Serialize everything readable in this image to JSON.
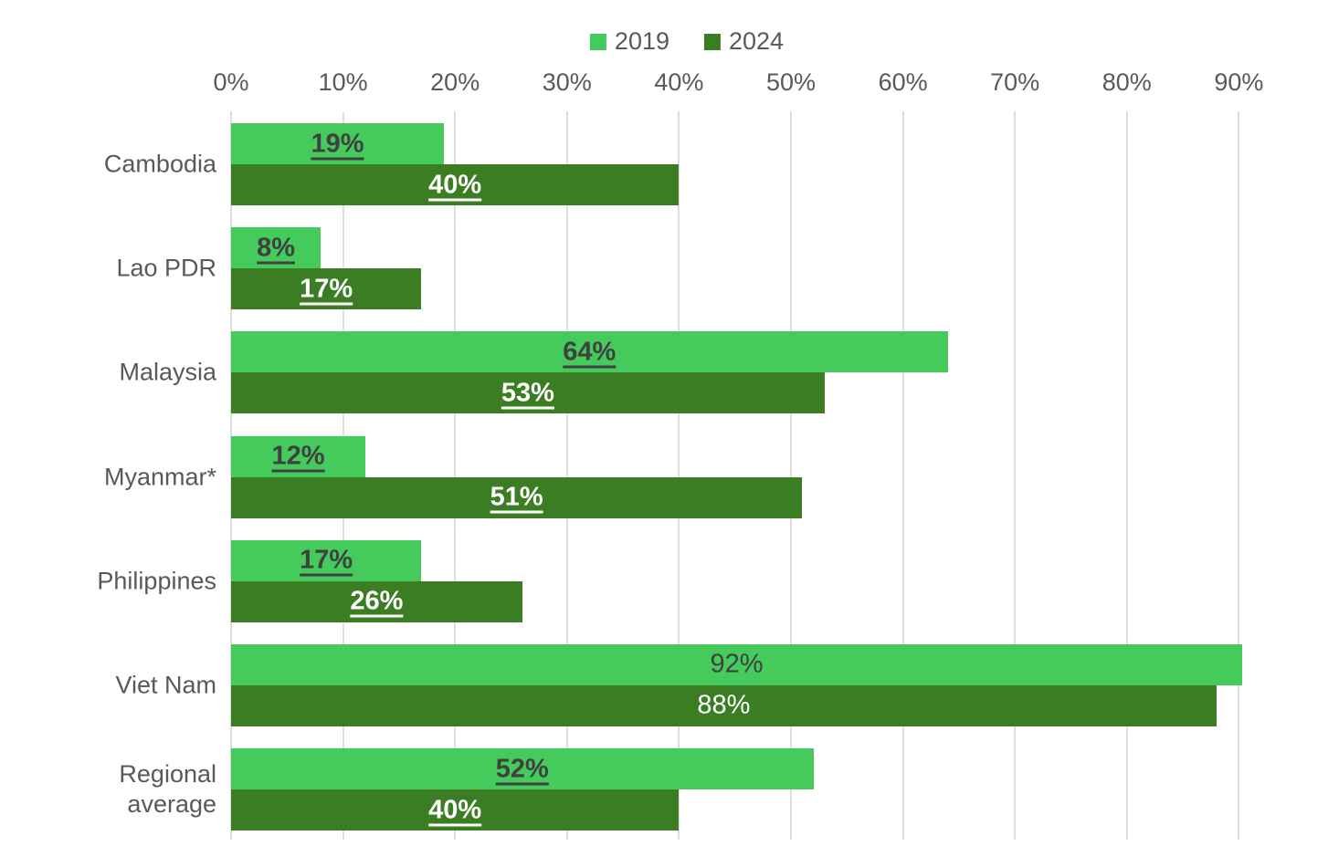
{
  "legend": {
    "items": [
      {
        "label": "2019",
        "color": "#44CB5C"
      },
      {
        "label": "2024",
        "color": "#3B7D23"
      }
    ]
  },
  "chart_data": {
    "type": "bar",
    "orientation": "horizontal",
    "title": "",
    "categories": [
      "Cambodia",
      "Lao PDR",
      "Malaysia",
      "Myanmar*",
      "Philippines",
      "Viet Nam",
      "Regional average"
    ],
    "series": [
      {
        "name": "2019",
        "color": "#44CB5C",
        "values": [
          19,
          8,
          64,
          12,
          17,
          92,
          52
        ]
      },
      {
        "name": "2024",
        "color": "#3B7D23",
        "values": [
          40,
          17,
          53,
          51,
          26,
          88,
          40
        ]
      }
    ],
    "value_label_suffix": "%",
    "value_labels": [
      "19%",
      "40%",
      "8%",
      "17%",
      "64%",
      "53%",
      "12%",
      "51%",
      "17%",
      "26%",
      "92%",
      "88%",
      "52%",
      "40%"
    ],
    "plain_label_categories": [
      "Viet Nam"
    ],
    "x_axis": {
      "ticks": [
        "0%",
        "10%",
        "20%",
        "30%",
        "40%",
        "50%",
        "60%",
        "70%",
        "80%",
        "90%"
      ],
      "tick_values": [
        0,
        10,
        20,
        30,
        40,
        50,
        60,
        70,
        80,
        90
      ]
    },
    "xlim": [
      0,
      98
    ],
    "grid": true,
    "legend_position": "top"
  },
  "colors": {
    "series_2019": "#44CB5C",
    "series_2024": "#3B7D23",
    "axis_text": "#595959",
    "category_text": "#595959",
    "value_text_on_light": "#404040",
    "value_text_on_dark": "#FFFFFF",
    "gridline": "#DEDEDE",
    "background": "#FFFFFF"
  }
}
